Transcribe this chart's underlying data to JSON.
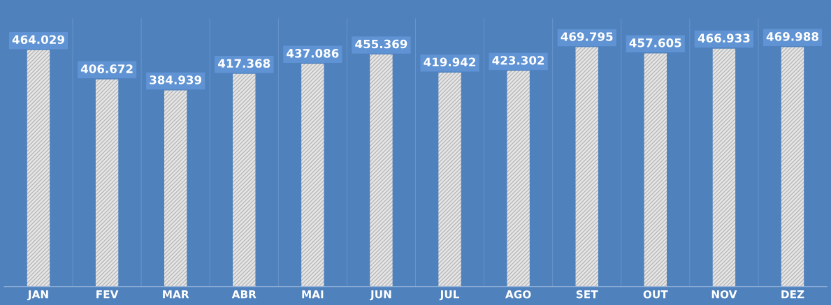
{
  "chart_data": {
    "type": "bar",
    "categories": [
      "JAN",
      "FEV",
      "MAR",
      "ABR",
      "MAI",
      "JUN",
      "JUL",
      "AGO",
      "SET",
      "OUT",
      "NOV",
      "DEZ"
    ],
    "values": [
      464.029,
      406.672,
      384.939,
      417.368,
      437.086,
      455.369,
      419.942,
      423.302,
      469.795,
      457.605,
      466.933,
      469.988
    ],
    "color": "#e6e6e6",
    "data_labels": true
  }
}
